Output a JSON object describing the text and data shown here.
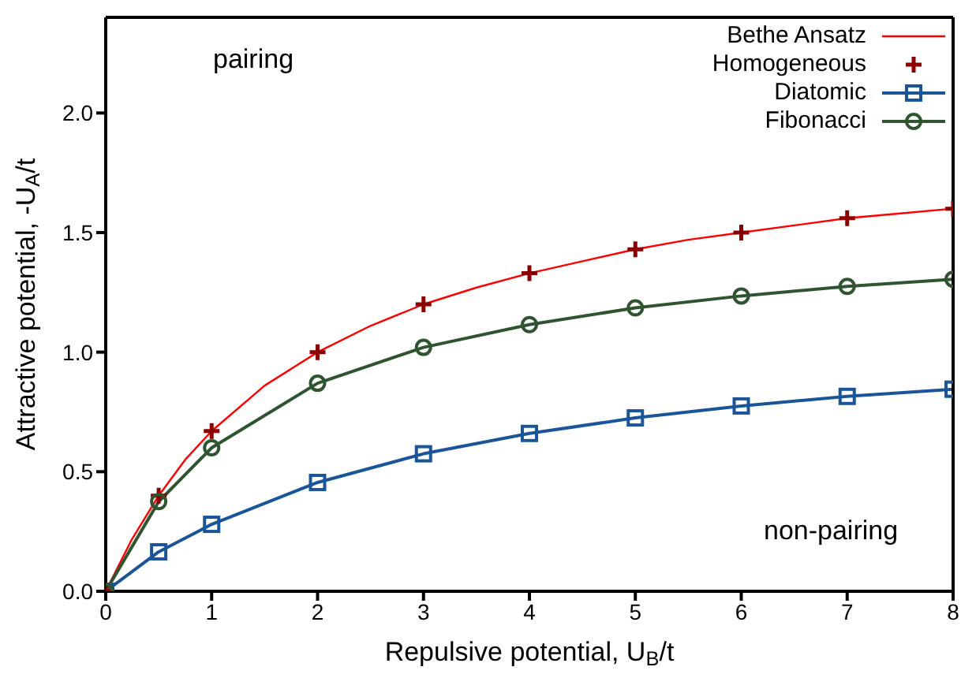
{
  "chart_data": {
    "type": "line",
    "xlabel": "Repulsive potential, U$_{B}$/t",
    "ylabel": "Attractive potential, -U$_{A}$/t",
    "xlim": [
      0,
      8
    ],
    "xticks": [
      0,
      1,
      2,
      3,
      4,
      5,
      6,
      7,
      8
    ],
    "ylim": [
      0,
      2.4
    ],
    "yticks": [
      {
        "value": 0,
        "label": "0.0"
      },
      {
        "value": 0.5,
        "label": "0.5"
      },
      {
        "value": 1,
        "label": "1.0"
      },
      {
        "value": 1.5,
        "label": "1.5"
      },
      {
        "value": 2,
        "label": "2.0"
      }
    ],
    "legend": "top right",
    "grid": false,
    "annotations": [
      "pairing",
      "non-pairing"
    ],
    "series": [
      {
        "name": "Bethe Ansatz",
        "marker": "none",
        "color": "#ff0000",
        "x": [
          0,
          0.25,
          0.5,
          0.75,
          1,
          1.5,
          2,
          2.5,
          3,
          3.5,
          4,
          4.5,
          5,
          5.5,
          6,
          6.5,
          7,
          7.5,
          8
        ],
        "values": [
          0,
          0.22,
          0.4,
          0.55,
          0.67,
          0.86,
          1.0,
          1.11,
          1.2,
          1.27,
          1.33,
          1.38,
          1.43,
          1.47,
          1.5,
          1.53,
          1.56,
          1.58,
          1.6
        ]
      },
      {
        "name": "Homogeneous",
        "type": "scatter",
        "marker": "cross",
        "color": "#8b0000",
        "x": [
          0,
          0.5,
          1,
          2,
          3,
          4,
          5,
          6,
          7,
          8
        ],
        "values": [
          0,
          0.4,
          0.67,
          1.0,
          1.2,
          1.33,
          1.43,
          1.5,
          1.56,
          1.6
        ]
      },
      {
        "name": "Diatomic",
        "marker": "square",
        "color": "#1a5599",
        "x": [
          0,
          0.5,
          1,
          2,
          3,
          4,
          5,
          6,
          7,
          8
        ],
        "values": [
          0,
          0.165,
          0.28,
          0.455,
          0.575,
          0.66,
          0.725,
          0.775,
          0.815,
          0.845
        ]
      },
      {
        "name": "Fibonacci",
        "marker": "circle",
        "color": "#2f5430",
        "x": [
          0,
          0.5,
          1,
          2,
          3,
          4,
          5,
          6,
          7,
          8
        ],
        "values": [
          0,
          0.375,
          0.6,
          0.87,
          1.02,
          1.115,
          1.185,
          1.235,
          1.275,
          1.305
        ]
      }
    ]
  }
}
